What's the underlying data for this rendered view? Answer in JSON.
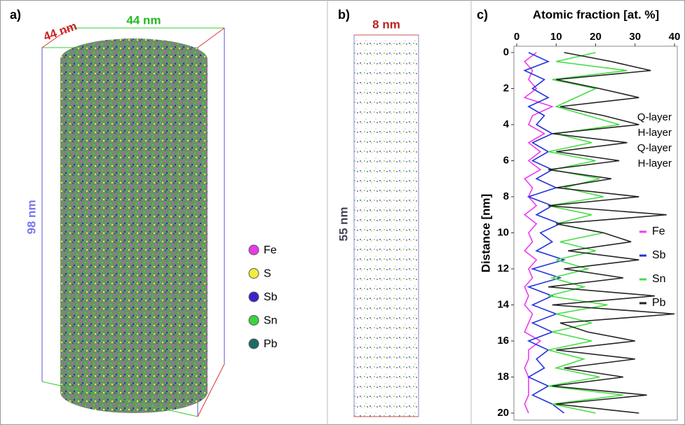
{
  "panel_a": {
    "label": "a)",
    "width_label_1": "44 nm",
    "width_label_2": "44 nm",
    "height_label": "98 nm",
    "legend": [
      {
        "name": "Fe",
        "color": "#e93ae9"
      },
      {
        "name": "S",
        "color": "#f2ee3a"
      },
      {
        "name": "Sb",
        "color": "#3b23c9"
      },
      {
        "name": "Sn",
        "color": "#3fd23f"
      },
      {
        "name": "Pb",
        "color": "#1d6b66"
      }
    ]
  },
  "panel_b": {
    "label": "b)",
    "width_label": "8 nm",
    "height_label": "55 nm"
  },
  "chart_data": {
    "type": "line",
    "panel_label": "c)",
    "orientation": "vertical",
    "xlabel": "Distance [nm]",
    "ylabel": "Atomic fraction [at. %]",
    "x": [
      0,
      0.5,
      1,
      1.5,
      2,
      2.5,
      3,
      3.5,
      4,
      4.5,
      5,
      5.5,
      6,
      6.5,
      7,
      7.5,
      8,
      8.5,
      9,
      9.5,
      10,
      10.5,
      11,
      11.5,
      12,
      12.5,
      13,
      13.5,
      14,
      14.5,
      15,
      15.5,
      16,
      16.5,
      17,
      17.5,
      18,
      18.5,
      19,
      19.5,
      20
    ],
    "xlim": [
      0,
      20
    ],
    "xticks": [
      0,
      2,
      4,
      6,
      8,
      10,
      12,
      14,
      16,
      18,
      20
    ],
    "ylim": [
      0,
      40
    ],
    "yticks": [
      0,
      10,
      20,
      30,
      40
    ],
    "series": [
      {
        "name": "Fe",
        "color": "#ee3cee",
        "values": [
          5,
          2,
          4,
          3,
          5,
          2,
          9,
          4,
          3,
          7,
          3,
          6,
          3,
          6,
          2,
          4,
          3,
          5,
          2,
          5,
          3,
          4,
          2,
          5,
          3,
          4,
          2,
          3,
          2,
          4,
          3,
          2,
          6,
          3,
          3,
          2,
          3,
          3,
          3,
          2,
          3
        ]
      },
      {
        "name": "Sb",
        "color": "#2233dd",
        "values": [
          3,
          8,
          2,
          7,
          4,
          8,
          3,
          7,
          5,
          9,
          4,
          8,
          4,
          9,
          5,
          10,
          3,
          9,
          5,
          11,
          6,
          9,
          5,
          12,
          4,
          11,
          3,
          9,
          4,
          10,
          4,
          9,
          3,
          8,
          5,
          7,
          3,
          8,
          4,
          9,
          12
        ]
      },
      {
        "name": "Sn",
        "color": "#44dd44",
        "values": [
          20,
          10,
          28,
          9,
          20,
          15,
          10,
          18,
          26,
          10,
          19,
          8,
          20,
          9,
          21,
          12,
          22,
          8,
          19,
          10,
          22,
          11,
          20,
          10,
          18,
          9,
          17,
          8,
          23,
          10,
          19,
          9,
          19,
          8,
          17,
          10,
          21,
          8,
          27,
          9,
          20
        ]
      },
      {
        "name": "Pb",
        "color": "#222222",
        "values": [
          12,
          24,
          34,
          10,
          21,
          31,
          11,
          22,
          31,
          9,
          28,
          10,
          26,
          8,
          24,
          10,
          31,
          8,
          38,
          10,
          22,
          29,
          13,
          31,
          12,
          27,
          8,
          35,
          9,
          40,
          11,
          18,
          30,
          10,
          30,
          12,
          27,
          9,
          33,
          10,
          31
        ]
      }
    ],
    "annotations": [
      "Q-layer",
      "H-layer",
      "Q-layer",
      "H-layer"
    ],
    "legend": "right"
  }
}
